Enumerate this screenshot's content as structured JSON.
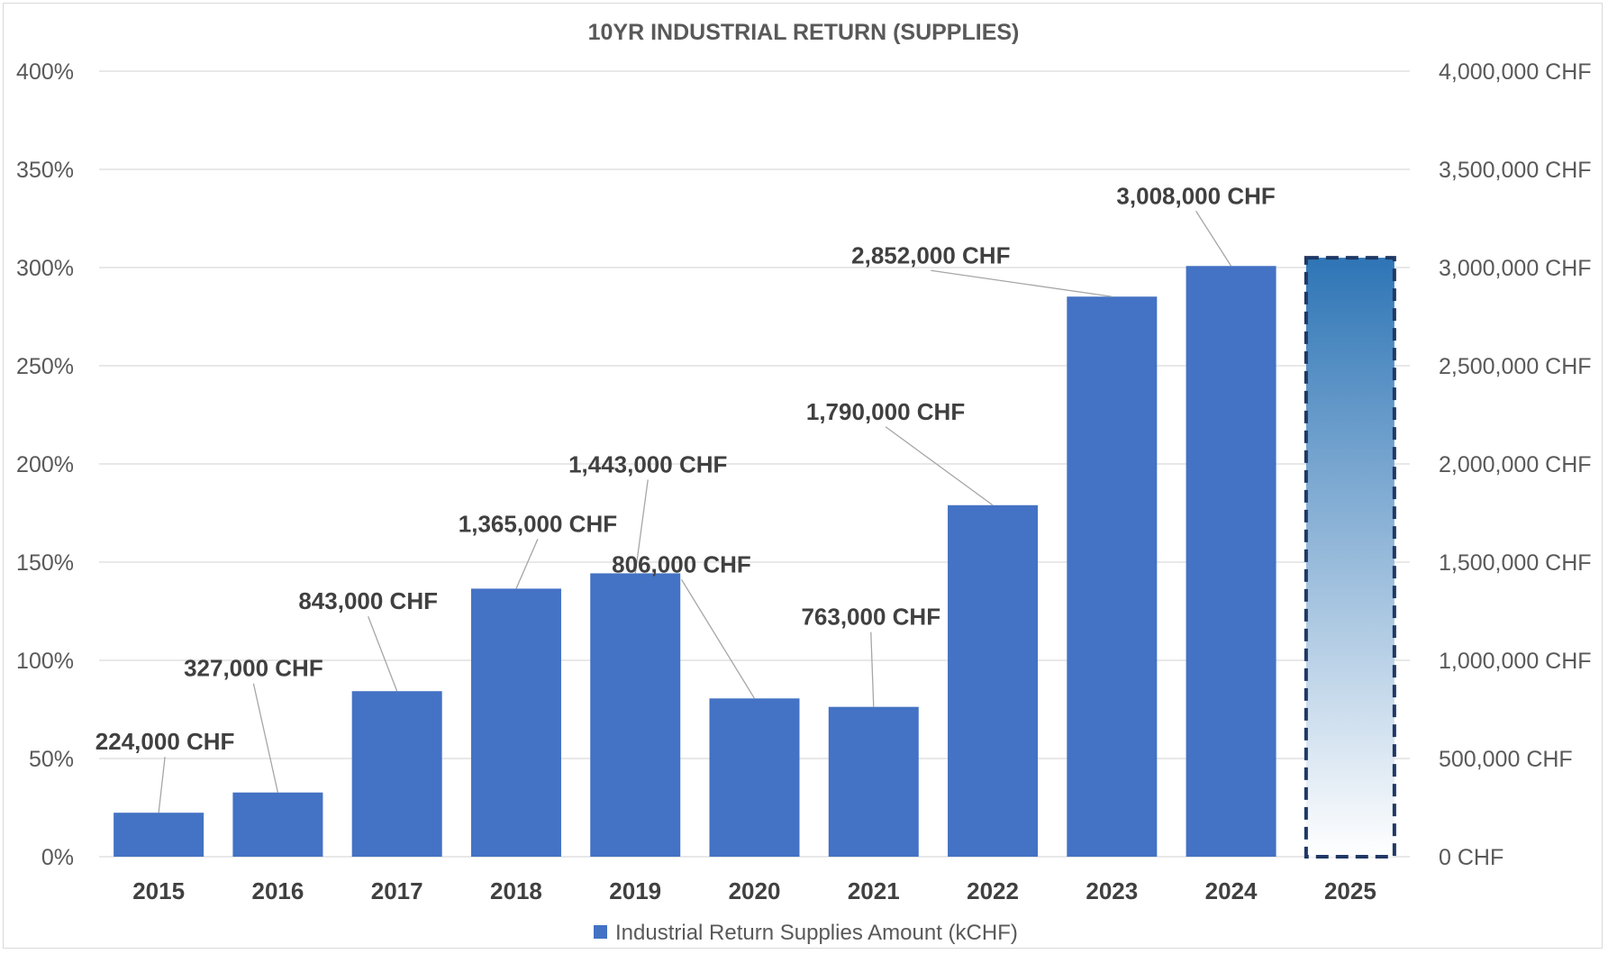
{
  "chart_data": {
    "type": "bar",
    "title": "10YR INDUSTRIAL RETURN (SUPPLIES)",
    "categories": [
      "2015",
      "2016",
      "2017",
      "2018",
      "2019",
      "2020",
      "2021",
      "2022",
      "2023",
      "2024",
      "2025"
    ],
    "series": [
      {
        "name": "Industrial Return Supplies Amount (kCHF)",
        "values": [
          224000,
          327000,
          843000,
          1365000,
          1443000,
          806000,
          763000,
          1790000,
          2852000,
          3008000,
          null
        ],
        "labels": [
          "224,000 CHF",
          "327,000 CHF",
          "843,000 CHF",
          "1,365,000 CHF",
          "1,443,000 CHF",
          "806,000 CHF",
          "763,000 CHF",
          "1,790,000 CHF",
          "2,852,000 CHF",
          "3,008,000 CHF",
          ""
        ]
      }
    ],
    "projection": {
      "category": "2025",
      "value": 3050000,
      "style": "dashed outline, gradient fill"
    },
    "y_left": {
      "ticks": [
        "0%",
        "50%",
        "100%",
        "150%",
        "200%",
        "250%",
        "300%",
        "350%",
        "400%"
      ],
      "ylim": [
        0,
        4
      ]
    },
    "y_right": {
      "ticks": [
        "0 CHF",
        "500,000 CHF",
        "1,000,000 CHF",
        "1,500,000 CHF",
        "2,000,000 CHF",
        "2,500,000 CHF",
        "3,000,000 CHF",
        "3,500,000 CHF",
        "4,000,000 CHF"
      ],
      "ylim": [
        0,
        4000000
      ]
    },
    "grid": true,
    "legend_position": "bottom",
    "colors": {
      "bar": "#4472c4",
      "projection_top": "#2e75b6",
      "projection_bottom": "#ffffff",
      "projection_border": "#1f3864",
      "grid": "#d9d9d9",
      "text": "#595959"
    }
  }
}
